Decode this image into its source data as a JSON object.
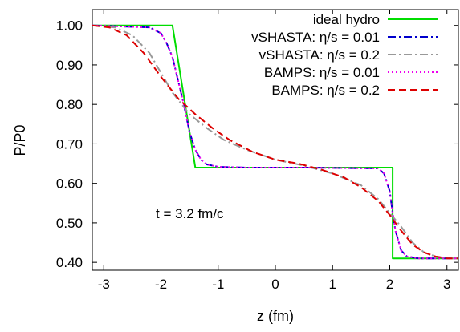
{
  "chart_data": {
    "type": "line",
    "xlabel": "z (fm)",
    "ylabel": "P/P0",
    "xlim": [
      -3.2,
      3.2
    ],
    "ylim": [
      0.38,
      1.04
    ],
    "xticks": [
      -3,
      -2,
      -1,
      0,
      1,
      2,
      3
    ],
    "xtick_labels": [
      "-3",
      "-2",
      "-1",
      "0",
      "1",
      "2",
      "3"
    ],
    "yticks": [
      0.4,
      0.5,
      0.6,
      0.7,
      0.8,
      0.9,
      1.0
    ],
    "ytick_labels": [
      "0.40",
      "0.50",
      "0.60",
      "0.70",
      "0.80",
      "0.90",
      "1.00"
    ],
    "grid": false,
    "legend_position": "top-right",
    "annotation": "t = 3.2 fm/c",
    "series": [
      {
        "name": "ideal hydro",
        "color": "#00dd00",
        "style": "solid",
        "x": [
          -3.2,
          -1.8,
          -1.4,
          2.05,
          2.05,
          3.2
        ],
        "y": [
          1.0,
          1.0,
          0.64,
          0.64,
          0.41,
          0.41
        ]
      },
      {
        "name": "vSHASTA: η/s = 0.01",
        "color": "#0000cc",
        "style": "dashdot",
        "x": [
          -3.2,
          -2.2,
          -2.0,
          -1.9,
          -1.8,
          -1.7,
          -1.6,
          -1.5,
          -1.4,
          -1.3,
          -1.2,
          -1.0,
          -0.5,
          0.5,
          1.8,
          1.9,
          2.0,
          2.05,
          2.1,
          2.2,
          2.3,
          2.5,
          3.2
        ],
        "y": [
          1.0,
          0.995,
          0.98,
          0.955,
          0.92,
          0.86,
          0.8,
          0.73,
          0.685,
          0.66,
          0.648,
          0.642,
          0.64,
          0.64,
          0.638,
          0.625,
          0.58,
          0.525,
          0.48,
          0.43,
          0.415,
          0.41,
          0.41
        ]
      },
      {
        "name": "vSHASTA: η/s = 0.2",
        "color": "#999999",
        "style": "dashdot",
        "x": [
          -3.2,
          -2.8,
          -2.5,
          -2.2,
          -2.0,
          -1.8,
          -1.5,
          -1.2,
          -0.9,
          -0.5,
          0.0,
          0.5,
          1.0,
          1.5,
          1.8,
          2.0,
          2.2,
          2.4,
          2.6,
          2.8,
          3.0,
          3.2
        ],
        "y": [
          1.0,
          0.995,
          0.975,
          0.93,
          0.88,
          0.83,
          0.775,
          0.74,
          0.71,
          0.685,
          0.66,
          0.645,
          0.625,
          0.595,
          0.56,
          0.525,
          0.49,
          0.45,
          0.425,
          0.415,
          0.41,
          0.41
        ]
      },
      {
        "name": "BAMPS: η/s = 0.01",
        "color": "#ee00ee",
        "style": "dotted",
        "x": [
          -3.2,
          -2.2,
          -2.0,
          -1.9,
          -1.8,
          -1.7,
          -1.6,
          -1.5,
          -1.4,
          -1.3,
          -1.2,
          -1.0,
          -0.5,
          0.5,
          1.8,
          1.9,
          2.0,
          2.05,
          2.1,
          2.2,
          2.3,
          2.5,
          3.2
        ],
        "y": [
          1.0,
          0.995,
          0.98,
          0.955,
          0.92,
          0.86,
          0.8,
          0.73,
          0.685,
          0.66,
          0.648,
          0.642,
          0.64,
          0.64,
          0.638,
          0.625,
          0.58,
          0.525,
          0.48,
          0.43,
          0.415,
          0.41,
          0.41
        ]
      },
      {
        "name": "BAMPS: η/s = 0.2",
        "color": "#dd0000",
        "style": "dashed",
        "x": [
          -3.2,
          -2.9,
          -2.6,
          -2.3,
          -2.0,
          -1.7,
          -1.4,
          -1.1,
          -0.8,
          -0.4,
          0.0,
          0.4,
          0.8,
          1.2,
          1.5,
          1.8,
          2.0,
          2.2,
          2.4,
          2.6,
          2.8,
          3.0,
          3.2
        ],
        "y": [
          1.0,
          0.995,
          0.975,
          0.93,
          0.87,
          0.815,
          0.775,
          0.74,
          0.71,
          0.68,
          0.66,
          0.65,
          0.635,
          0.615,
          0.59,
          0.555,
          0.52,
          0.48,
          0.445,
          0.425,
          0.415,
          0.41,
          0.41
        ]
      }
    ]
  }
}
